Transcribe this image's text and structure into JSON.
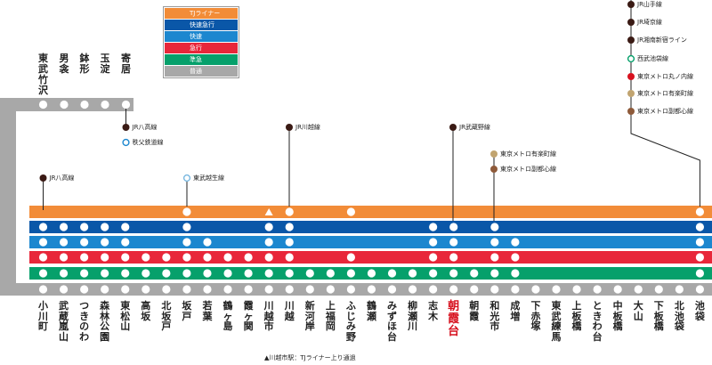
{
  "legend": [
    {
      "label": "TJライナー",
      "color": "#f28c38"
    },
    {
      "label": "快速急行",
      "color": "#0a57a8"
    },
    {
      "label": "快速",
      "color": "#1c87cf"
    },
    {
      "label": "急行",
      "color": "#e8273a"
    },
    {
      "label": "準急",
      "color": "#06a06b"
    },
    {
      "label": "普通",
      "color": "#a8a8a8"
    }
  ],
  "stations": [
    "小川町",
    "武蔵嵐山",
    "つきのわ",
    "森林公園",
    "東松山",
    "高坂",
    "北坂戸",
    "坂戸",
    "若葉",
    "鶴ヶ島",
    "霞ヶ関",
    "川越市",
    "川越",
    "新河岸",
    "上福岡",
    "ふじみ野",
    "鶴瀬",
    "みずほ台",
    "柳瀬川",
    "志木",
    "朝霞台",
    "朝霞",
    "和光市",
    "成増",
    "下赤塚",
    "東武練馬",
    "上板橋",
    "ときわ台",
    "中板橋",
    "大山",
    "下板橋",
    "北池袋",
    "池袋"
  ],
  "highlight_station": "朝霞台",
  "ogose_stations": [
    "東武竹沢",
    "男衾",
    "鉢形",
    "玉淀",
    "寄居"
  ],
  "stops": {
    "TJライナー": [
      "坂戸",
      "川越",
      "ふじみ野",
      "池袋"
    ],
    "TJライナー_note_station": "川越市",
    "快速急行": [
      "小川町",
      "武蔵嵐山",
      "つきのわ",
      "森林公園",
      "東松山",
      "坂戸",
      "川越市",
      "川越",
      "志木",
      "朝霞台",
      "和光市",
      "池袋"
    ],
    "快速": [
      "小川町",
      "武蔵嵐山",
      "つきのわ",
      "森林公園",
      "東松山",
      "坂戸",
      "若葉",
      "川越市",
      "川越",
      "志木",
      "朝霞台",
      "和光市",
      "成増",
      "池袋"
    ],
    "急行": [
      "小川町",
      "武蔵嵐山",
      "つきのわ",
      "森林公園",
      "東松山",
      "高坂",
      "北坂戸",
      "坂戸",
      "若葉",
      "鶴ヶ島",
      "霞ヶ関",
      "川越市",
      "川越",
      "ふじみ野",
      "志木",
      "朝霞台",
      "和光市",
      "成増",
      "池袋"
    ],
    "準急": [
      "小川町",
      "武蔵嵐山",
      "つきのわ",
      "森林公園",
      "東松山",
      "高坂",
      "北坂戸",
      "坂戸",
      "若葉",
      "鶴ヶ島",
      "霞ヶ関",
      "川越市",
      "川越",
      "新河岸",
      "上福岡",
      "ふじみ野",
      "鶴瀬",
      "みずほ台",
      "柳瀬川",
      "志木",
      "朝霞台",
      "朝霞",
      "和光市",
      "成増",
      "池袋"
    ],
    "普通": "all"
  },
  "connections": [
    {
      "station": "小川町",
      "lines": [
        {
          "name": "JR八高線",
          "type": "dark"
        }
      ]
    },
    {
      "station": "寄居",
      "lines": [
        {
          "name": "JR八高線",
          "type": "dark"
        },
        {
          "name": "秩父鉄道線",
          "type": "ring-blue"
        }
      ]
    },
    {
      "station": "坂戸",
      "lines": [
        {
          "name": "東武越生線",
          "type": "ring-sky"
        }
      ]
    },
    {
      "station": "川越",
      "lines": [
        {
          "name": "JR川越線",
          "type": "dark"
        }
      ]
    },
    {
      "station": "朝霞台",
      "lines": [
        {
          "name": "JR武蔵野線",
          "type": "dark"
        }
      ]
    },
    {
      "station": "和光市",
      "lines": [
        {
          "name": "東京メトロ有楽町線",
          "type": "gold"
        },
        {
          "name": "東京メトロ副都心線",
          "type": "brown"
        }
      ]
    },
    {
      "station": "池袋",
      "lines": [
        {
          "name": "JR山手線",
          "type": "dark"
        },
        {
          "name": "JR埼京線",
          "type": "dark"
        },
        {
          "name": "JR湘南新宿ライン",
          "type": "dark"
        },
        {
          "name": "西武池袋線",
          "type": "ring-green"
        },
        {
          "name": "東京メトロ丸ノ内線",
          "type": "red"
        },
        {
          "name": "東京メトロ有楽町線",
          "type": "gold"
        },
        {
          "name": "東京メトロ副都心線",
          "type": "brown"
        }
      ]
    }
  ],
  "footnote": "▲川越市駅：TJライナー上り通過"
}
